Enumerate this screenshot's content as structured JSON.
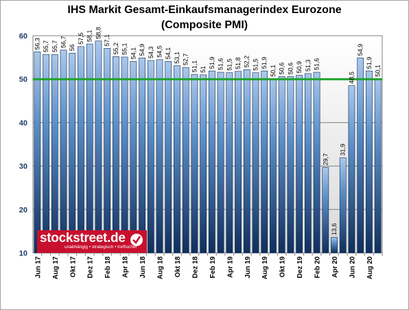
{
  "chart_data": {
    "type": "bar",
    "title": "IHS Markit Gesamt-Einkaufsmanagerindex Eurozone",
    "subtitle": "(Composite PMI)",
    "xlabel": "",
    "ylabel": "",
    "ylim": [
      10,
      60
    ],
    "yticks": [
      "10",
      "20",
      "30",
      "40",
      "50",
      "60"
    ],
    "grid": true,
    "reference_line": {
      "value": 50,
      "color": "#1ea32a"
    },
    "bar_color": "#2e5f94",
    "categories": [
      "Jun 17",
      "Jul 17",
      "Aug 17",
      "Sep 17",
      "Okt 17",
      "Nov 17",
      "Dez 17",
      "Jan 18",
      "Feb 18",
      "Mrz 18",
      "Apr 18",
      "Mai 18",
      "Jun 18",
      "Jul 18",
      "Aug 18",
      "Sep 18",
      "Okt 18",
      "Nov 18",
      "Dez 18",
      "Jan 19",
      "Feb 19",
      "Mrz 19",
      "Apr 19",
      "Mai 19",
      "Jun 19",
      "Jul 19",
      "Aug 19",
      "Sep 19",
      "Okt 19",
      "Nov 19",
      "Dez 19",
      "Jan 20",
      "Feb 20",
      "Mrz 20",
      "Apr 20",
      "Mai 20",
      "Jun 20",
      "Jul 20",
      "Aug 20",
      "Sep 20"
    ],
    "x_tick_labels": [
      "Jun 17",
      "",
      "Aug 17",
      "",
      "Okt 17",
      "",
      "Dez 17",
      "",
      "Feb 18",
      "",
      "Apr 18",
      "",
      "Jun 18",
      "",
      "Aug 18",
      "",
      "Okt 18",
      "",
      "Dez 18",
      "",
      "Feb 19",
      "",
      "Apr 19",
      "",
      "Jun 19",
      "",
      "Aug 19",
      "",
      "Okt 19",
      "",
      "Dez 19",
      "",
      "Feb 20",
      "",
      "Apr 20",
      "",
      "Jun 20",
      "",
      "Aug 20",
      ""
    ],
    "values": [
      56.3,
      55.7,
      55.7,
      56.7,
      56.0,
      57.5,
      58.1,
      58.8,
      57.1,
      55.2,
      55.1,
      54.1,
      54.9,
      54.3,
      54.5,
      54.1,
      53.1,
      52.7,
      51.1,
      51.0,
      51.9,
      51.6,
      51.5,
      51.8,
      52.2,
      51.5,
      51.9,
      50.1,
      50.6,
      50.6,
      50.9,
      51.3,
      51.6,
      29.7,
      13.6,
      31.9,
      48.5,
      54.9,
      51.9,
      50.1
    ],
    "data_labels": [
      "56,3",
      "55,7",
      "55,7",
      "56,7",
      "56",
      "57,5",
      "58,1",
      "58,8",
      "57,1",
      "55,2",
      "55,1",
      "54,1",
      "54,9",
      "54,3",
      "54,5",
      "54,1",
      "53,1",
      "52,7",
      "51,1",
      "51",
      "51,9",
      "51,6",
      "51,5",
      "51,8",
      "52,2",
      "51,5",
      "51,9",
      "50,1",
      "50,6",
      "50,6",
      "50,9",
      "51,3",
      "51,6",
      "29,7",
      "13,6",
      "31,9",
      "48,5",
      "54,9",
      "51,9",
      "50,1"
    ]
  },
  "logo": {
    "name": "stockstreet.de",
    "tagline": "unabhängig • strategisch • treffsicher",
    "check_icon": "checkmark-icon"
  }
}
